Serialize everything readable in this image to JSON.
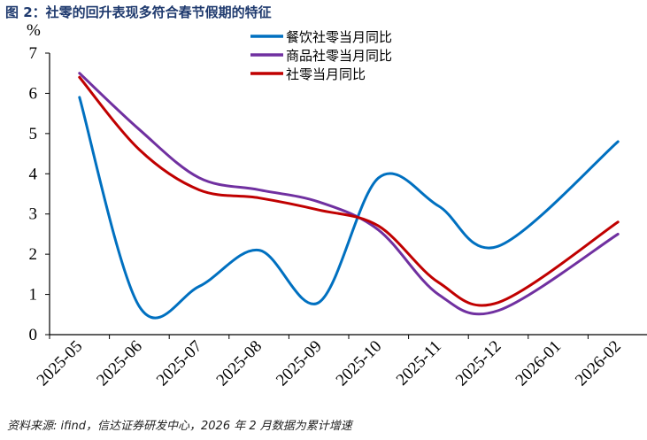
{
  "title": "图 2：社零的回升表现多符合春节假期的特征",
  "source": "资料来源: ifind，信达证券研发中心，2026 年 2 月数据为累计增速",
  "chart_data": {
    "type": "line",
    "title": "图 2：社零的回升表现多符合春节假期的特征",
    "ylabel": "%",
    "xlabel": "",
    "ylim": [
      0,
      7
    ],
    "yticks": [
      "0",
      "1",
      "2",
      "3",
      "4",
      "5",
      "6",
      "7"
    ],
    "categories": [
      "2025-05",
      "2025-06",
      "2025-07",
      "2025-08",
      "2025-09",
      "2025-10",
      "2025-11",
      "2025-12",
      "2026-01",
      "2026-02"
    ],
    "legend_position": "top-center",
    "grid": false,
    "series": [
      {
        "name": "餐饮社零当月同比",
        "color": "#0070C0",
        "values": [
          5.9,
          0.7,
          1.2,
          2.1,
          0.8,
          3.9,
          3.2,
          2.2,
          null,
          4.8
        ]
      },
      {
        "name": "商品社零当月同比",
        "color": "#7030A0",
        "values": [
          6.5,
          5.1,
          3.9,
          3.6,
          3.3,
          2.6,
          1.0,
          0.6,
          null,
          2.5
        ]
      },
      {
        "name": "社零当月同比",
        "color": "#C00000",
        "values": [
          6.4,
          4.6,
          3.6,
          3.4,
          3.1,
          2.7,
          1.3,
          0.8,
          null,
          2.8
        ]
      }
    ]
  }
}
